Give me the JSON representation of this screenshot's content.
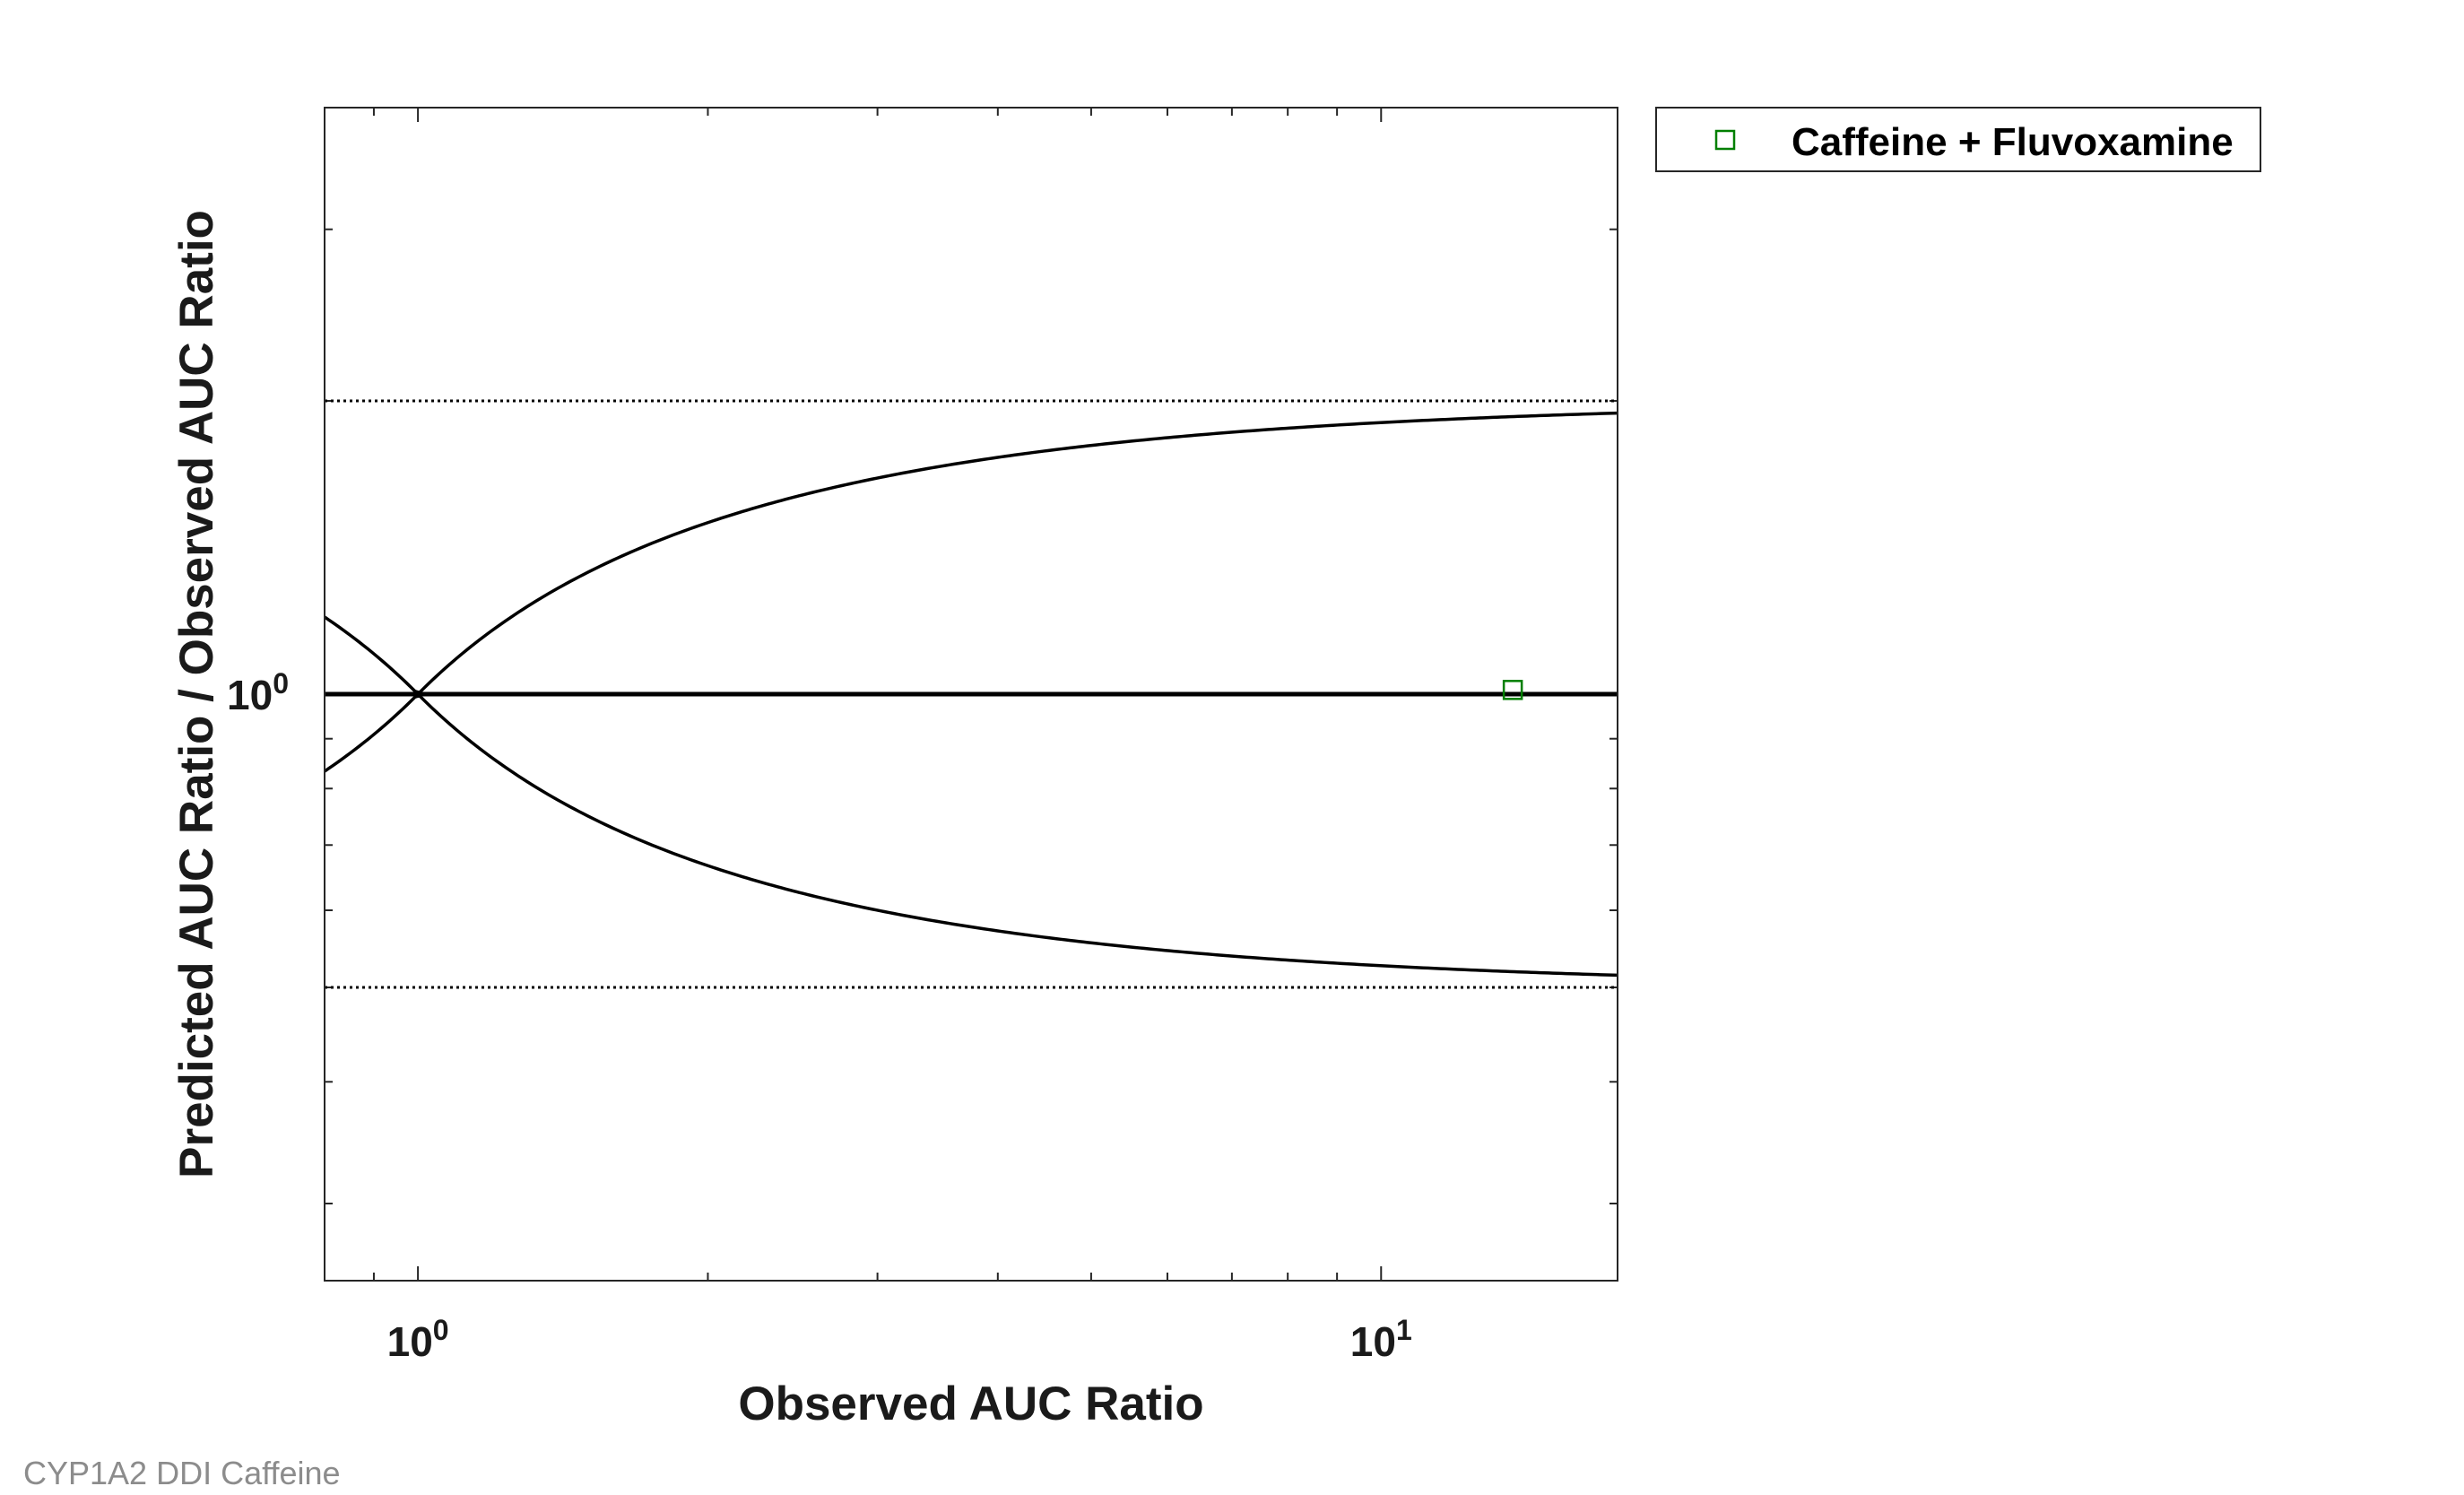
{
  "chart_data": {
    "type": "scatter",
    "title": "",
    "xlabel": "Observed AUC Ratio",
    "ylabel": "Predicted AUC Ratio / Observed AUC Ratio",
    "x_scale": "log",
    "y_scale": "log",
    "xlim": [
      0.8,
      17.6
    ],
    "ylim": [
      0.25,
      4.0
    ],
    "x_ticks": [
      {
        "value": 1,
        "base": "10",
        "exp": "0"
      },
      {
        "value": 10,
        "base": "10",
        "exp": "1"
      }
    ],
    "y_ticks": [
      {
        "value": 1,
        "base": "10",
        "exp": "0"
      }
    ],
    "reference_lines": {
      "identity": 1,
      "upper_limit": 2,
      "lower_limit": 0.5,
      "guest_limit_delta": 1
    },
    "series": [
      {
        "name": "Caffeine + Fluvoxamine",
        "marker": "square",
        "color": "#007f00",
        "points": [
          {
            "x": 13.7,
            "y": 1.01
          }
        ]
      }
    ],
    "legend_position": "outside-top-right",
    "grid": false
  },
  "footer": {
    "caption": "CYP1A2 DDI Caffeine"
  }
}
